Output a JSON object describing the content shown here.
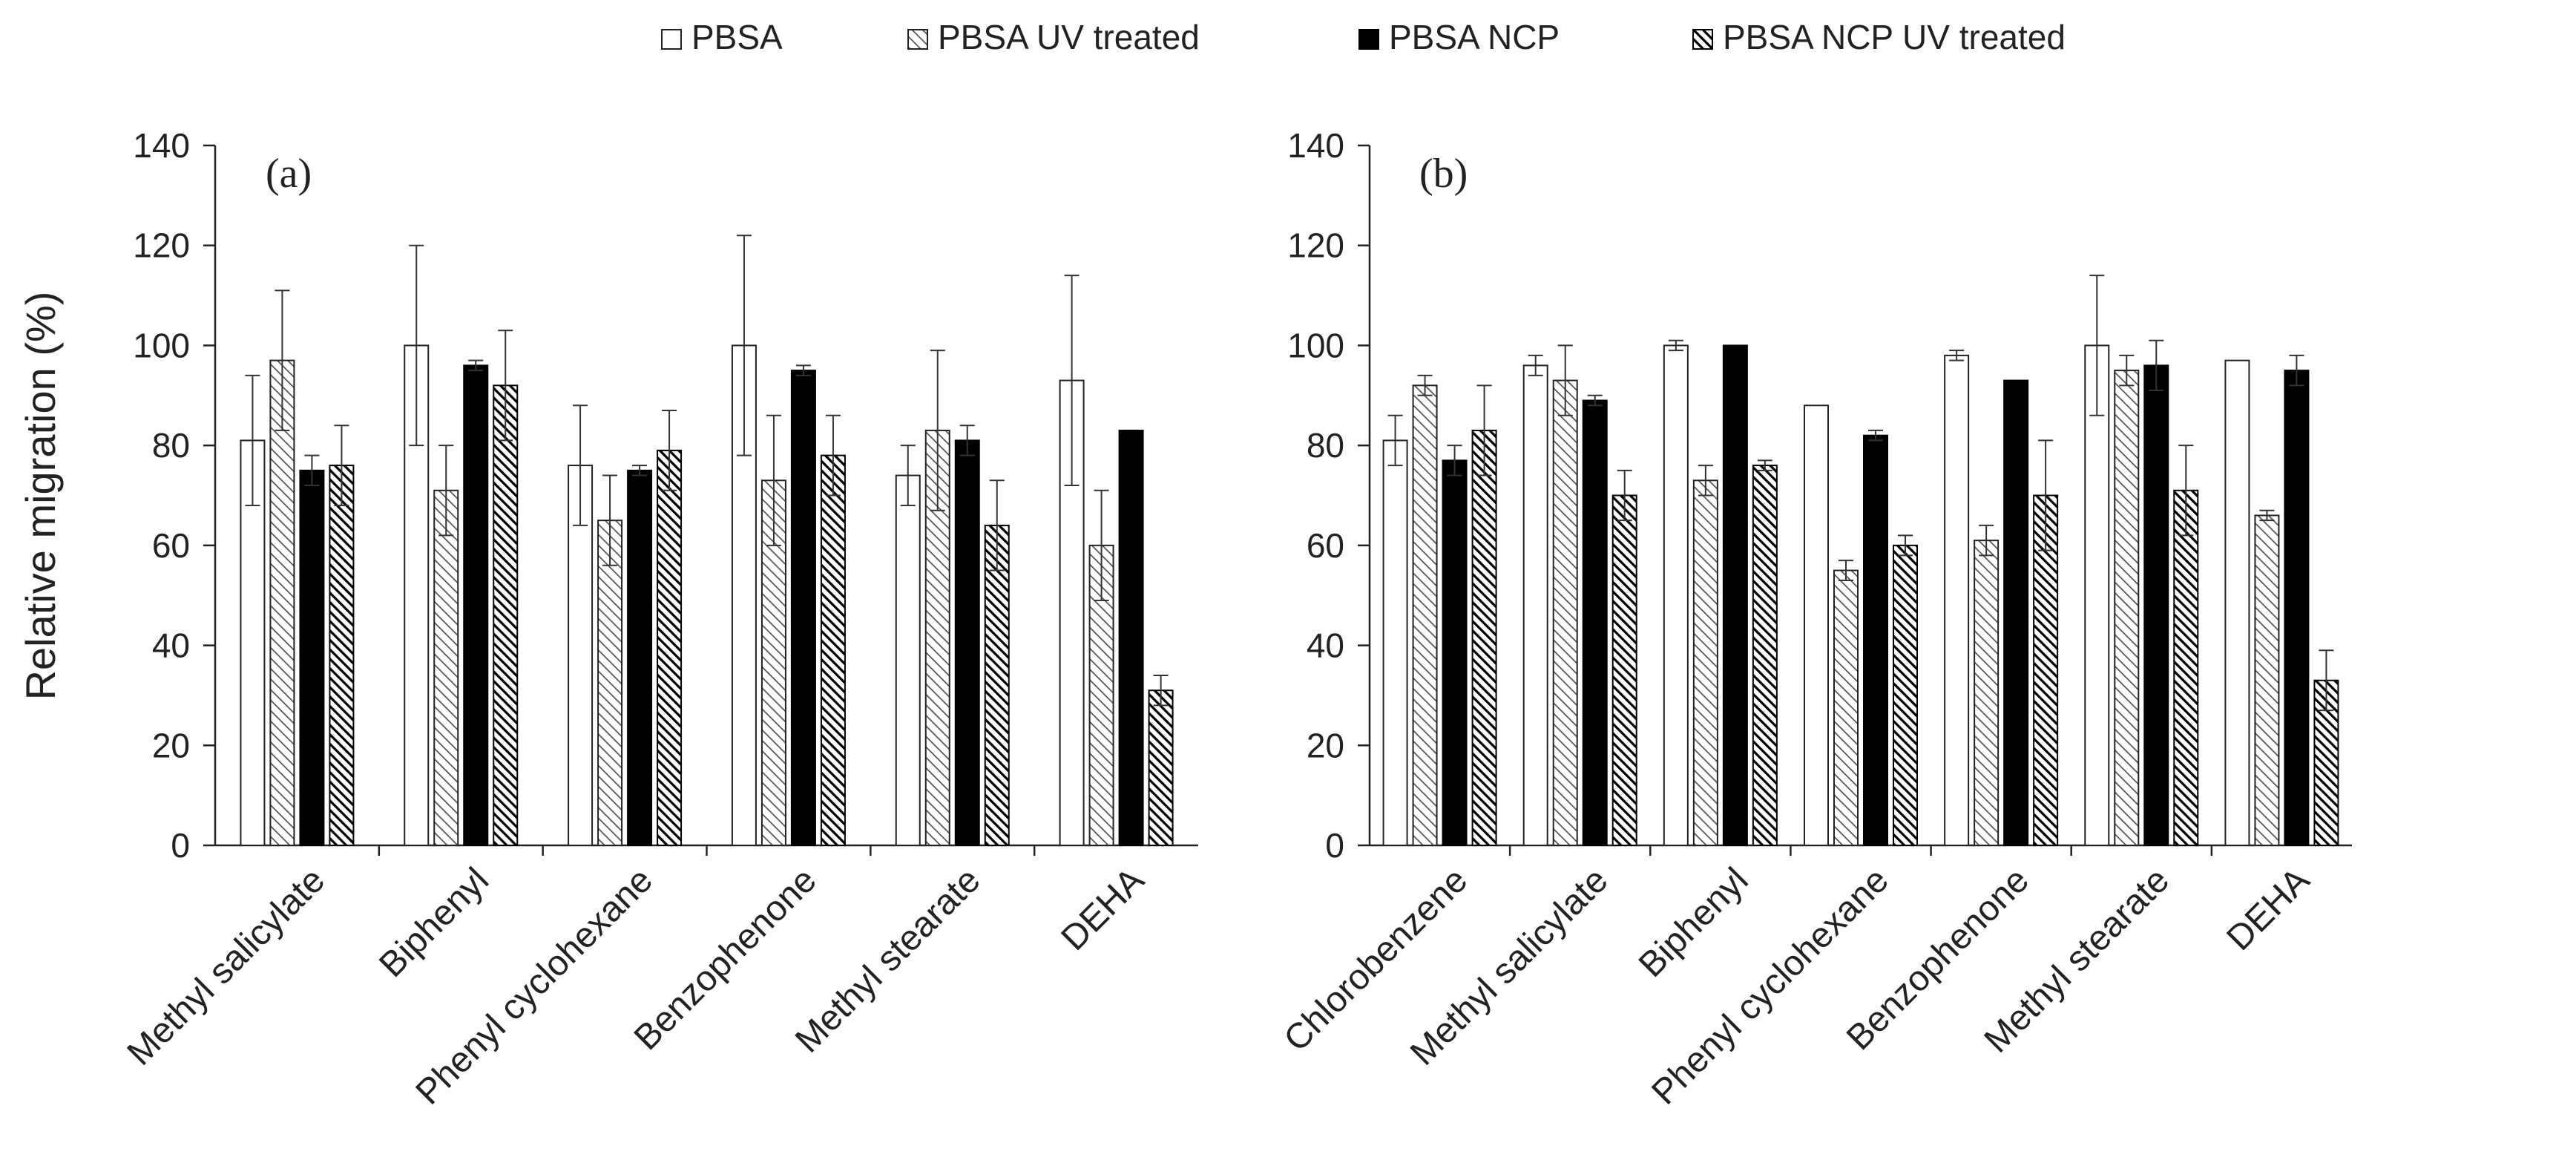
{
  "legend": {
    "items": [
      {
        "label": "PBSA",
        "pattern": "open"
      },
      {
        "label": "PBSA UV treated",
        "pattern": "hatch"
      },
      {
        "label": "PBSA NCP",
        "pattern": "solid"
      },
      {
        "label": "PBSA NCP UV treated",
        "pattern": "dark-hatch"
      }
    ]
  },
  "colors": {
    "axis": "#222222",
    "fill_dark": "#000000",
    "hatch_light": "#555555"
  },
  "chart_data": [
    {
      "type": "bar",
      "panel_label": "(a)",
      "ylabel": "Relative migration (%)",
      "ylim": [
        0,
        140
      ],
      "yticks": [
        0,
        20,
        40,
        60,
        80,
        100,
        120,
        140
      ],
      "categories": [
        "Methyl salicylate",
        "Biphenyl",
        "Phenyl cyclohexane",
        "Benzophenone",
        "Methyl stearate",
        "DEHA"
      ],
      "series": [
        {
          "name": "PBSA",
          "values": [
            81,
            100,
            76,
            100,
            74,
            93
          ],
          "errors": [
            13,
            20,
            12,
            22,
            6,
            21
          ]
        },
        {
          "name": "PBSA UV treated",
          "values": [
            97,
            71,
            65,
            73,
            83,
            60
          ],
          "errors": [
            14,
            9,
            9,
            13,
            16,
            11
          ]
        },
        {
          "name": "PBSA NCP",
          "values": [
            75,
            96,
            75,
            95,
            81,
            83
          ],
          "errors": [
            3,
            1,
            1,
            1,
            3,
            0
          ]
        },
        {
          "name": "PBSA NCP UV treated",
          "values": [
            76,
            92,
            79,
            78,
            64,
            31
          ],
          "errors": [
            8,
            11,
            8,
            8,
            9,
            3
          ]
        }
      ]
    },
    {
      "type": "bar",
      "panel_label": "(b)",
      "ylabel": "",
      "ylim": [
        0,
        140
      ],
      "yticks": [
        0,
        20,
        40,
        60,
        80,
        100,
        120,
        140
      ],
      "categories": [
        "Chlorobenzene",
        "Methyl salicylate",
        "Biphenyl",
        "Phenyl cyclohexane",
        "Benzophenone",
        "Methyl stearate",
        "DEHA"
      ],
      "series": [
        {
          "name": "PBSA",
          "values": [
            81,
            96,
            100,
            88,
            98,
            100,
            97
          ],
          "errors": [
            5,
            2,
            1,
            0,
            1,
            14,
            0
          ]
        },
        {
          "name": "PBSA UV treated",
          "values": [
            92,
            93,
            73,
            55,
            61,
            95,
            66
          ],
          "errors": [
            2,
            7,
            3,
            2,
            3,
            3,
            1
          ]
        },
        {
          "name": "PBSA NCP",
          "values": [
            77,
            89,
            100,
            82,
            93,
            96,
            95
          ],
          "errors": [
            3,
            1,
            0,
            1,
            0,
            5,
            3
          ]
        },
        {
          "name": "PBSA NCP UV treated",
          "values": [
            83,
            70,
            76,
            60,
            70,
            71,
            33
          ],
          "errors": [
            9,
            5,
            1,
            2,
            11,
            9,
            6
          ]
        }
      ]
    }
  ]
}
